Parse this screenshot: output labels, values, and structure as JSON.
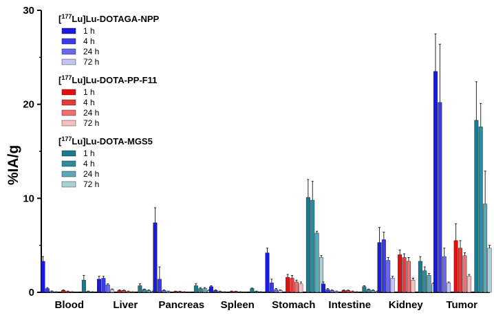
{
  "chart_data": {
    "type": "bar",
    "ylabel": "%IA/g",
    "ylim": [
      0,
      30
    ],
    "yticks": [
      0,
      10,
      20,
      30
    ],
    "categories": [
      "Blood",
      "Liver",
      "Pancreas",
      "Spleen",
      "Stomach",
      "Intestine",
      "Kidney",
      "Tumor"
    ],
    "groups": [
      {
        "title_sup": "177",
        "title_rest": "Lu]Lu-DOTAGA-NPP",
        "series": [
          {
            "name": "1 h",
            "color": "#1a1adf",
            "values": [
              3.3,
              1.4,
              7.4,
              0.6,
              4.2,
              0.9,
              5.3,
              23.5
            ],
            "errors": [
              0.5,
              0.3,
              1.6,
              0.1,
              0.5,
              0.2,
              1.6,
              4.0
            ]
          },
          {
            "name": "4 h",
            "color": "#3a3ae6",
            "values": [
              0.4,
              1.5,
              1.4,
              0.2,
              1.0,
              0.3,
              5.6,
              20.2
            ],
            "errors": [
              0.1,
              0.2,
              1.3,
              0.05,
              0.4,
              0.1,
              0.8,
              6.2
            ]
          },
          {
            "name": "24 h",
            "color": "#6a6ae8",
            "values": [
              0.1,
              0.8,
              0.2,
              0.1,
              0.3,
              0.2,
              3.4,
              3.8
            ],
            "errors": [
              0.05,
              0.1,
              0.05,
              0.03,
              0.1,
              0.05,
              0.3,
              0.9
            ]
          },
          {
            "name": "72 h",
            "color": "#c4c4f2",
            "values": [
              0.05,
              0.3,
              0.1,
              0.05,
              0.2,
              0.1,
              1.5,
              1.0
            ],
            "errors": [
              0.02,
              0.05,
              0.03,
              0.02,
              0.05,
              0.03,
              0.2,
              0.1
            ]
          }
        ]
      },
      {
        "title_sup": "177",
        "title_rest": "Lu]Lu-DOTA-PP-F11",
        "series": [
          {
            "name": "1 h",
            "color": "#e01010",
            "values": [
              0.2,
              0.2,
              0.1,
              0.1,
              1.6,
              0.2,
              4.0,
              5.5
            ],
            "errors": [
              0.05,
              0.05,
              0.03,
              0.03,
              0.3,
              0.05,
              0.5,
              1.8
            ]
          },
          {
            "name": "4 h",
            "color": "#e33a3a",
            "values": [
              0.1,
              0.2,
              0.1,
              0.1,
              1.5,
              0.2,
              3.7,
              4.7
            ],
            "errors": [
              0.03,
              0.04,
              0.02,
              0.02,
              0.3,
              0.04,
              0.4,
              0.8
            ]
          },
          {
            "name": "24 h",
            "color": "#ec7070",
            "values": [
              0.05,
              0.1,
              0.05,
              0.05,
              1.1,
              0.1,
              3.3,
              3.9
            ],
            "errors": [
              0.02,
              0.03,
              0.02,
              0.02,
              0.2,
              0.03,
              0.4,
              0.3
            ]
          },
          {
            "name": "72 h",
            "color": "#f6c0c0",
            "values": [
              0.03,
              0.05,
              0.03,
              0.03,
              0.9,
              0.05,
              1.3,
              1.7
            ],
            "errors": [
              0.01,
              0.02,
              0.01,
              0.01,
              0.2,
              0.02,
              0.2,
              0.2
            ]
          }
        ]
      },
      {
        "title_sup": "177",
        "title_rest": "Lu]Lu-DOTA-MGS5",
        "series": [
          {
            "name": "1 h",
            "color": "#1a7a8c",
            "values": [
              1.3,
              0.7,
              0.7,
              0.4,
              10.1,
              0.6,
              3.3,
              18.3
            ],
            "errors": [
              0.5,
              0.2,
              0.2,
              0.05,
              1.9,
              0.1,
              0.5,
              4.1
            ]
          },
          {
            "name": "4 h",
            "color": "#2f8b9c",
            "values": [
              0.1,
              0.3,
              0.4,
              0.1,
              9.8,
              0.3,
              2.3,
              17.6
            ],
            "errors": [
              0.03,
              0.05,
              0.1,
              0.03,
              2.0,
              0.05,
              0.4,
              2.5
            ]
          },
          {
            "name": "24 h",
            "color": "#5ea8b5",
            "values": [
              0.05,
              0.2,
              0.4,
              0.05,
              6.3,
              0.2,
              1.8,
              9.4
            ],
            "errors": [
              0.02,
              0.05,
              0.1,
              0.02,
              0.2,
              0.05,
              0.2,
              3.5
            ]
          },
          {
            "name": "72 h",
            "color": "#a7d0d7",
            "values": [
              0.03,
              0.1,
              0.2,
              0.03,
              3.7,
              0.1,
              0.9,
              4.7
            ],
            "errors": [
              0.01,
              0.03,
              0.05,
              0.01,
              0.2,
              0.03,
              0.1,
              0.3
            ]
          }
        ]
      }
    ],
    "legend_position": "top-left",
    "grid": false
  }
}
